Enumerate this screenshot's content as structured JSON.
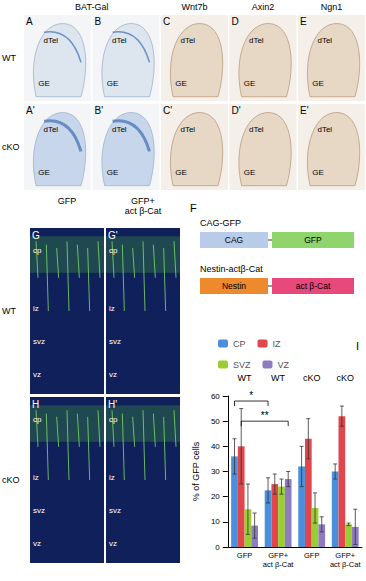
{
  "figure": {
    "top": {
      "headers": [
        "BAT-Gal",
        "Wnt7b",
        "Axin2",
        "Ngn1"
      ],
      "rows": [
        {
          "label": "WT",
          "panels": [
            "A",
            "B",
            "C",
            "D",
            "E"
          ]
        },
        {
          "label": "cKO",
          "panels": [
            "A'",
            "B'",
            "C'",
            "D'",
            "E'"
          ]
        }
      ],
      "region_labels": [
        "dTel",
        "GE"
      ]
    },
    "middle": {
      "headers": [
        "GFP",
        "GFP+\nact β-Cat"
      ],
      "rows": [
        {
          "label": "WT",
          "panels": [
            "G",
            "G'"
          ]
        },
        {
          "label": "cKO",
          "panels": [
            "H",
            "H'"
          ]
        }
      ],
      "layers": [
        "cp",
        "iz",
        "svz",
        "vz"
      ]
    },
    "constructs": {
      "letter": "F",
      "items": [
        {
          "name": "CAG-GFP",
          "parts": [
            "CAG",
            "GFP"
          ]
        },
        {
          "name": "Nestin-actβ-Cat",
          "parts": [
            "Nestin",
            "act β-Cat"
          ]
        }
      ]
    },
    "chart_letter": "I"
  },
  "chart_data": {
    "type": "bar",
    "y_label": "% of GFP cells",
    "categories": [
      "GFP",
      "GFP+\nact β-Cat",
      "GFP",
      "GFP+\nact β-Cat"
    ],
    "groups": [
      "WT",
      "WT",
      "cKO",
      "cKO"
    ],
    "series": [
      {
        "name": "CP",
        "color": "#4a8fdc",
        "values": [
          36,
          22.5,
          32,
          30
        ],
        "errors": [
          7,
          5,
          8,
          3
        ]
      },
      {
        "name": "IZ",
        "color": "#e0474c",
        "values": [
          40,
          25,
          43,
          52
        ],
        "errors": [
          15,
          4,
          8,
          4
        ]
      },
      {
        "name": "SVZ",
        "color": "#9acd32",
        "values": [
          15,
          24,
          15.5,
          9
        ],
        "errors": [
          10,
          3,
          6,
          0.5
        ]
      },
      {
        "name": "VZ",
        "color": "#8e7cc3",
        "values": [
          8.5,
          27,
          9,
          8
        ],
        "errors": [
          5,
          3,
          3,
          7
        ]
      }
    ],
    "annotations": [
      {
        "text": "*",
        "from": {
          "category": 0,
          "series": "CP"
        },
        "to": {
          "category": 1,
          "series": "CP"
        },
        "y": 58
      },
      {
        "text": "**",
        "from": {
          "category": 0,
          "series": "IZ"
        },
        "to": {
          "category": 1,
          "series": "VZ"
        },
        "y": 50
      }
    ],
    "ylim": [
      0,
      60
    ],
    "yticks": [
      0,
      10,
      20,
      30,
      40,
      50,
      60
    ],
    "grid": false,
    "legend": "top"
  }
}
